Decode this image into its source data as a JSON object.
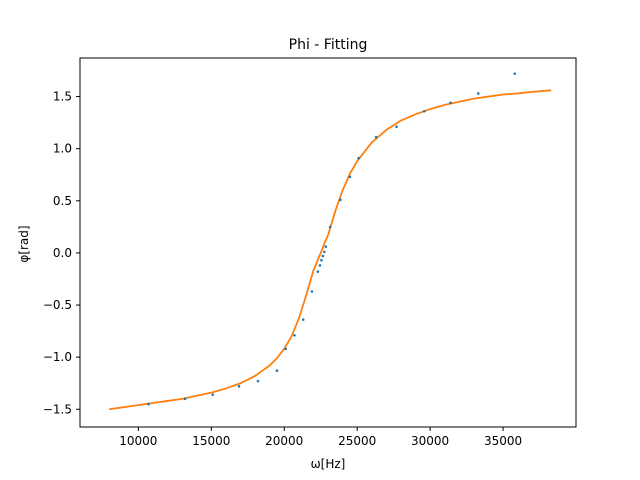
{
  "chart_data": {
    "type": "scatter",
    "title": "Phi - Fitting",
    "xlabel": "ω[Hz]",
    "ylabel": "φ[rad]",
    "xlim": [
      6000,
      40000
    ],
    "ylim": [
      -1.67,
      1.87
    ],
    "x_ticks": [
      10000,
      15000,
      20000,
      25000,
      30000,
      35000
    ],
    "x_tick_labels": [
      "10000",
      "15000",
      "20000",
      "25000",
      "30000",
      "35000"
    ],
    "y_ticks": [
      -1.5,
      -1.0,
      -0.5,
      0.0,
      0.5,
      1.0,
      1.5
    ],
    "y_tick_labels": [
      "−1.5",
      "−1.0",
      "−0.5",
      "0.0",
      "0.5",
      "1.0",
      "1.5"
    ],
    "grid": false,
    "series": [
      {
        "kind": "scatter",
        "color": "#1f77b4",
        "x": [
          10700,
          13200,
          15100,
          16900,
          18200,
          19500,
          20100,
          20700,
          21300,
          21900,
          22300,
          22450,
          22550,
          22650,
          22750,
          22850,
          23150,
          23850,
          24500,
          25100,
          26300,
          27700,
          29600,
          31400,
          33300,
          35800
        ],
        "y": [
          -1.45,
          -1.4,
          -1.36,
          -1.28,
          -1.23,
          -1.13,
          -0.92,
          -0.79,
          -0.64,
          -0.37,
          -0.18,
          -0.12,
          -0.07,
          -0.03,
          0.01,
          0.06,
          0.25,
          0.51,
          0.73,
          0.91,
          1.11,
          1.21,
          1.36,
          1.44,
          1.53,
          1.72
        ]
      },
      {
        "kind": "line",
        "color": "#ff7f0e",
        "x": [
          8000,
          9000,
          10000,
          11000,
          12000,
          13000,
          14000,
          15000,
          16000,
          17000,
          18000,
          19000,
          19500,
          20000,
          20500,
          21000,
          21500,
          22000,
          22500,
          22750,
          23000,
          23500,
          24000,
          24500,
          25000,
          26000,
          27000,
          28000,
          29000,
          30000,
          31000,
          32000,
          33000,
          34000,
          35000,
          36000,
          37000,
          38300
        ],
        "y": [
          -1.5,
          -1.48,
          -1.46,
          -1.44,
          -1.42,
          -1.4,
          -1.37,
          -1.34,
          -1.3,
          -1.25,
          -1.18,
          -1.08,
          -1.01,
          -0.92,
          -0.8,
          -0.63,
          -0.41,
          -0.17,
          0.0,
          0.09,
          0.17,
          0.4,
          0.6,
          0.76,
          0.88,
          1.06,
          1.18,
          1.27,
          1.33,
          1.38,
          1.42,
          1.45,
          1.48,
          1.5,
          1.52,
          1.53,
          1.545,
          1.56
        ]
      }
    ]
  }
}
